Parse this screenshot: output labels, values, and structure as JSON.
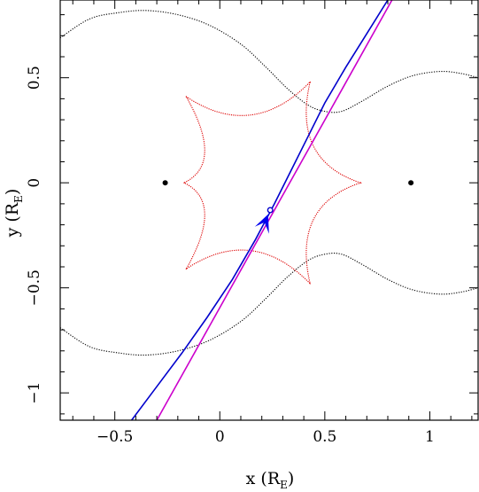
{
  "chart_data": {
    "type": "line",
    "title": "",
    "xlabel": "x (R",
    "xlabel_sub": "E",
    "xlabel_close": ")",
    "ylabel": "y (R",
    "ylabel_sub": "E",
    "ylabel_close": ")",
    "xlim": [
      -0.76,
      1.23
    ],
    "ylim": [
      -1.13,
      0.87
    ],
    "grid": false,
    "legend": "none",
    "x_ticks": [
      -0.5,
      0,
      0.5,
      1
    ],
    "x_tick_labels": [
      "−0.5",
      "0",
      "0.5",
      "1"
    ],
    "y_ticks": [
      -1,
      -0.5,
      0,
      0.5
    ],
    "y_tick_labels": [
      "−1",
      "−0.5",
      "0",
      "0.5"
    ],
    "lens_masses": [
      {
        "x": -0.26,
        "y": 0.0
      },
      {
        "x": 0.91,
        "y": 0.0
      }
    ],
    "caustic": {
      "color": "#dd0000",
      "cusps": [
        {
          "x": 0.67,
          "y": 0.0
        },
        {
          "x": 0.43,
          "y": 0.48
        },
        {
          "x": -0.16,
          "y": 0.41
        },
        {
          "x": -0.17,
          "y": 0.0
        },
        {
          "x": -0.16,
          "y": -0.41
        },
        {
          "x": 0.43,
          "y": -0.48
        }
      ]
    },
    "critical_curve": {
      "color": "#000000",
      "upper": [
        [
          -0.76,
          0.69
        ],
        [
          -0.62,
          0.78
        ],
        [
          -0.48,
          0.81
        ],
        [
          -0.35,
          0.82
        ],
        [
          -0.2,
          0.8
        ],
        [
          -0.05,
          0.75
        ],
        [
          0.1,
          0.66
        ],
        [
          0.22,
          0.55
        ],
        [
          0.32,
          0.45
        ],
        [
          0.42,
          0.37
        ],
        [
          0.5,
          0.34
        ],
        [
          0.58,
          0.34
        ],
        [
          0.68,
          0.39
        ],
        [
          0.8,
          0.46
        ],
        [
          0.92,
          0.51
        ],
        [
          1.05,
          0.53
        ],
        [
          1.15,
          0.52
        ],
        [
          1.23,
          0.5
        ]
      ],
      "lower": [
        [
          -0.76,
          -0.69
        ],
        [
          -0.62,
          -0.78
        ],
        [
          -0.48,
          -0.81
        ],
        [
          -0.35,
          -0.82
        ],
        [
          -0.2,
          -0.8
        ],
        [
          -0.05,
          -0.75
        ],
        [
          0.1,
          -0.66
        ],
        [
          0.22,
          -0.55
        ],
        [
          0.32,
          -0.45
        ],
        [
          0.42,
          -0.37
        ],
        [
          0.5,
          -0.34
        ],
        [
          0.58,
          -0.34
        ],
        [
          0.68,
          -0.39
        ],
        [
          0.8,
          -0.46
        ],
        [
          0.92,
          -0.51
        ],
        [
          1.05,
          -0.53
        ],
        [
          1.15,
          -0.52
        ],
        [
          1.23,
          -0.5
        ]
      ]
    },
    "series": [
      {
        "color": "#0000cc",
        "points": [
          [
            -0.42,
            -1.13
          ],
          [
            -0.3,
            -0.97
          ],
          [
            -0.18,
            -0.81
          ],
          [
            -0.06,
            -0.64
          ],
          [
            0.06,
            -0.46
          ],
          [
            0.17,
            -0.27
          ],
          [
            0.26,
            -0.1
          ],
          [
            0.34,
            0.06
          ],
          [
            0.42,
            0.22
          ],
          [
            0.5,
            0.38
          ],
          [
            0.6,
            0.55
          ],
          [
            0.7,
            0.71
          ],
          [
            0.8,
            0.87
          ]
        ]
      },
      {
        "color": "#cc00cc",
        "points": [
          [
            -0.3,
            -1.13
          ],
          [
            0.82,
            0.87
          ]
        ]
      }
    ],
    "source_position": {
      "x": 0.24,
      "y": -0.13
    },
    "arrow_tip": {
      "x": 0.23,
      "y": -0.15
    },
    "arrow_color": "#0000ee"
  }
}
